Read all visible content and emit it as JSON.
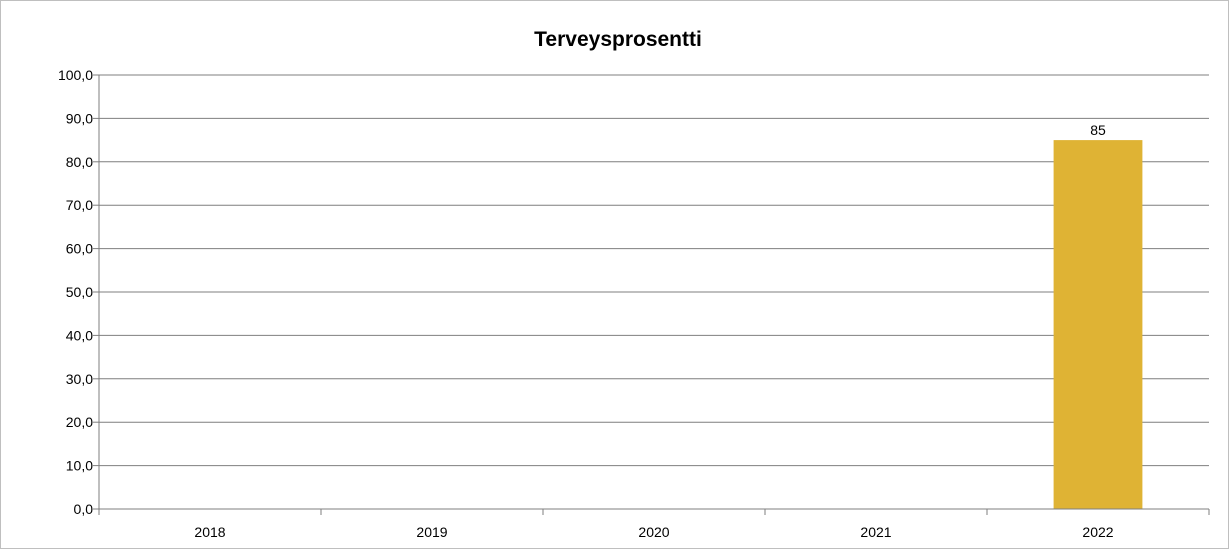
{
  "chart_data": {
    "type": "bar",
    "title": "Terveysprosentti",
    "xlabel": "",
    "ylabel": "",
    "categories": [
      "2018",
      "2019",
      "2020",
      "2021",
      "2022"
    ],
    "values": [
      null,
      null,
      null,
      null,
      85
    ],
    "data_labels": [
      "",
      "",
      "",
      "",
      "85"
    ],
    "ylim": [
      0,
      100
    ],
    "y_ticks": [
      "0,0",
      "10,0",
      "20,0",
      "30,0",
      "40,0",
      "50,0",
      "60,0",
      "70,0",
      "80,0",
      "90,0",
      "100,0"
    ],
    "grid": true,
    "legend": "none",
    "bar_color": "#dfb334",
    "grid_color": "#7f7f7f"
  }
}
